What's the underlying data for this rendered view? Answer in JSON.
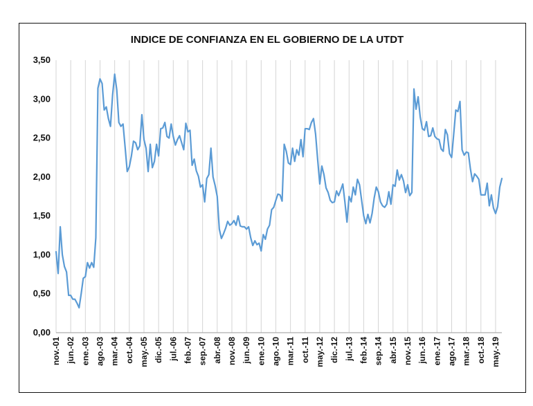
{
  "chart_data": {
    "type": "line",
    "title": "INDICE DE CONFIANZA EN EL GOBIERNO  DE LA UTDT",
    "xlabel": "",
    "ylabel": "",
    "ylim": [
      0,
      3.5
    ],
    "y_tick_values": [
      0,
      0.5,
      1.0,
      1.5,
      2.0,
      2.5,
      3.0,
      3.5
    ],
    "y_tick_labels": [
      "0,00",
      "0,50",
      "1,00",
      "1,50",
      "2,00",
      "2,50",
      "3,00",
      "3,50"
    ],
    "x_tick_labels": [
      "nov.-01",
      "jun.-02",
      "ene.-03",
      "ago.-03",
      "mar.-04",
      "oct.-04",
      "may.-05",
      "dic.-05",
      "jul.-06",
      "feb.-07",
      "sep.-07",
      "abr.-08",
      "nov.-08",
      "jun.-09",
      "ene.-10",
      "ago.-10",
      "mar.-11",
      "oct.-11",
      "may.-12",
      "dic.-12",
      "jul.-13",
      "feb.-14",
      "sep.-14",
      "abr.-15",
      "nov.-15",
      "jun.-16",
      "ene.-17",
      "ago.-17",
      "mar.-18",
      "oct.-18",
      "may.-19"
    ],
    "grid": "vertical",
    "line_color": "#5b9bd5",
    "x_start": "nov.-01",
    "x_frequency": "monthly",
    "values": [
      1.04,
      0.76,
      1.36,
      1.0,
      0.85,
      0.78,
      0.48,
      0.48,
      0.43,
      0.43,
      0.38,
      0.32,
      0.5,
      0.7,
      0.72,
      0.9,
      0.83,
      0.9,
      0.84,
      1.22,
      3.14,
      3.26,
      3.2,
      2.86,
      2.9,
      2.75,
      2.65,
      3.05,
      3.32,
      3.12,
      2.7,
      2.65,
      2.68,
      2.38,
      2.07,
      2.13,
      2.27,
      2.46,
      2.44,
      2.35,
      2.4,
      2.8,
      2.48,
      2.37,
      2.07,
      2.42,
      2.12,
      2.2,
      2.42,
      2.27,
      2.62,
      2.63,
      2.7,
      2.52,
      2.5,
      2.68,
      2.52,
      2.41,
      2.48,
      2.53,
      2.44,
      2.35,
      2.69,
      2.58,
      2.6,
      2.15,
      2.23,
      2.08,
      2.01,
      1.87,
      1.9,
      1.68,
      1.98,
      2.03,
      2.37,
      2.0,
      1.89,
      1.75,
      1.33,
      1.21,
      1.27,
      1.34,
      1.43,
      1.38,
      1.4,
      1.44,
      1.38,
      1.5,
      1.37,
      1.36,
      1.36,
      1.33,
      1.36,
      1.22,
      1.12,
      1.18,
      1.13,
      1.15,
      1.05,
      1.26,
      1.2,
      1.33,
      1.38,
      1.58,
      1.61,
      1.7,
      1.78,
      1.77,
      1.69,
      2.42,
      2.33,
      2.18,
      2.16,
      2.37,
      2.2,
      2.35,
      2.28,
      2.48,
      2.26,
      2.62,
      2.62,
      2.61,
      2.7,
      2.75,
      2.55,
      2.22,
      1.91,
      2.14,
      2.03,
      1.86,
      1.8,
      1.7,
      1.67,
      1.68,
      1.82,
      1.76,
      1.83,
      1.91,
      1.68,
      1.42,
      1.75,
      1.68,
      1.87,
      1.77,
      1.97,
      1.9,
      1.7,
      1.5,
      1.4,
      1.52,
      1.41,
      1.53,
      1.73,
      1.87,
      1.81,
      1.68,
      1.63,
      1.61,
      1.65,
      1.81,
      1.65,
      1.9,
      1.88,
      2.09,
      1.96,
      2.03,
      1.95,
      1.8,
      1.9,
      1.76,
      1.8,
      3.13,
      2.87,
      3.03,
      2.77,
      2.62,
      2.6,
      2.71,
      2.52,
      2.53,
      2.63,
      2.52,
      2.49,
      2.48,
      2.36,
      2.33,
      2.61,
      2.54,
      2.3,
      2.25,
      2.55,
      2.86,
      2.84,
      2.97,
      2.35,
      2.28,
      2.32,
      2.31,
      2.1,
      1.94,
      2.04,
      2.01,
      1.97,
      1.77,
      1.77,
      1.77,
      1.92,
      1.63,
      1.77,
      1.6,
      1.53,
      1.62,
      1.87,
      1.98
    ]
  }
}
